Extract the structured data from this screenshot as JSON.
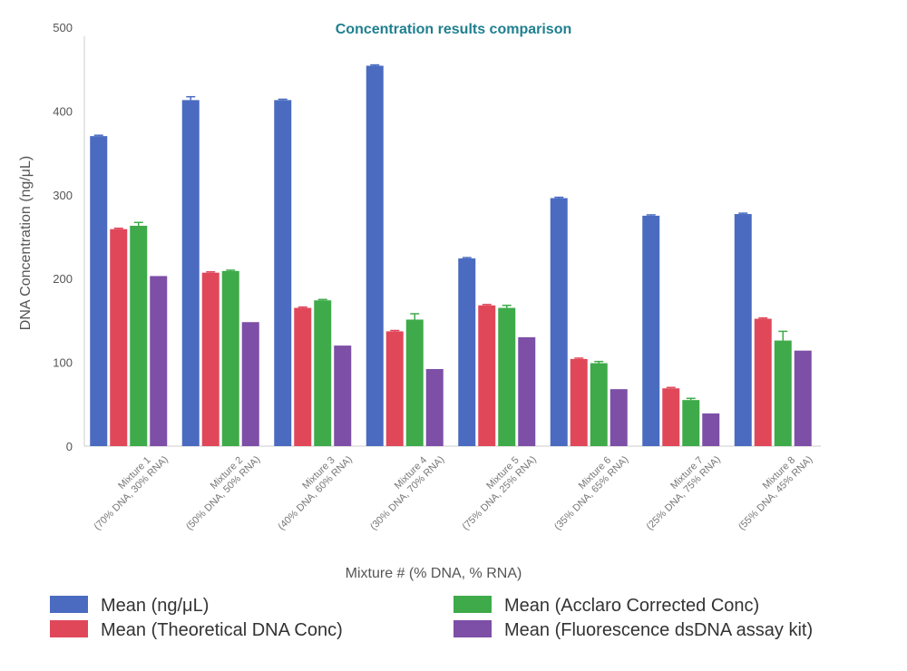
{
  "chart_data": {
    "type": "bar",
    "title": "Concentration results comparison",
    "xlabel": "Mixture # (% DNA, % RNA)",
    "ylabel": "DNA Concentration (ng/μL)",
    "ylim": [
      0,
      500
    ],
    "yticks": [
      0,
      100,
      200,
      300,
      400,
      500
    ],
    "categories": [
      {
        "line1": "Mixture 1",
        "line2": "(70% DNA, 30% RNA)"
      },
      {
        "line1": "Mixture 2",
        "line2": "(50% DNA, 50% RNA)"
      },
      {
        "line1": "Mixture 3",
        "line2": "(40% DNA, 60% RNA)"
      },
      {
        "line1": "Mixture 4",
        "line2": "(30% DNA, 70% RNA)"
      },
      {
        "line1": "Mixture 5",
        "line2": "(75% DNA, 25% RNA)"
      },
      {
        "line1": "Mixture 6",
        "line2": "(35% DNA, 65% RNA)"
      },
      {
        "line1": "Mixture 7",
        "line2": "(25% DNA, 75% RNA)"
      },
      {
        "line1": "Mixture 8",
        "line2": "(55% DNA, 45% RNA)"
      }
    ],
    "series": [
      {
        "name": "Mean (ng/μL)",
        "color": "#4a6bc0",
        "values": [
          370,
          413,
          413,
          454,
          224,
          296,
          275,
          277
        ],
        "errors": [
          1,
          4,
          1,
          1,
          1,
          1,
          1,
          1
        ]
      },
      {
        "name": "Mean (Theoretical DNA Conc)",
        "color": "#e0485a",
        "values": [
          259,
          207,
          165,
          137,
          168,
          104,
          69,
          152
        ],
        "errors": [
          1,
          1,
          1,
          1,
          1,
          1,
          1,
          1
        ]
      },
      {
        "name": "Mean (Acclaro Corrected Conc)",
        "color": "#3faa4a",
        "values": [
          263,
          209,
          174,
          151,
          165,
          99,
          55,
          126
        ],
        "errors": [
          4,
          1,
          1,
          7,
          3,
          2,
          2,
          11
        ]
      },
      {
        "name": "Mean (Fluorescence dsDNA assay kit)",
        "color": "#7d4fa6",
        "values": [
          203,
          148,
          120,
          92,
          130,
          68,
          39,
          114
        ],
        "errors": [
          0,
          0,
          0,
          0,
          0,
          0,
          0,
          0
        ]
      }
    ],
    "legend_position": "bottom"
  }
}
